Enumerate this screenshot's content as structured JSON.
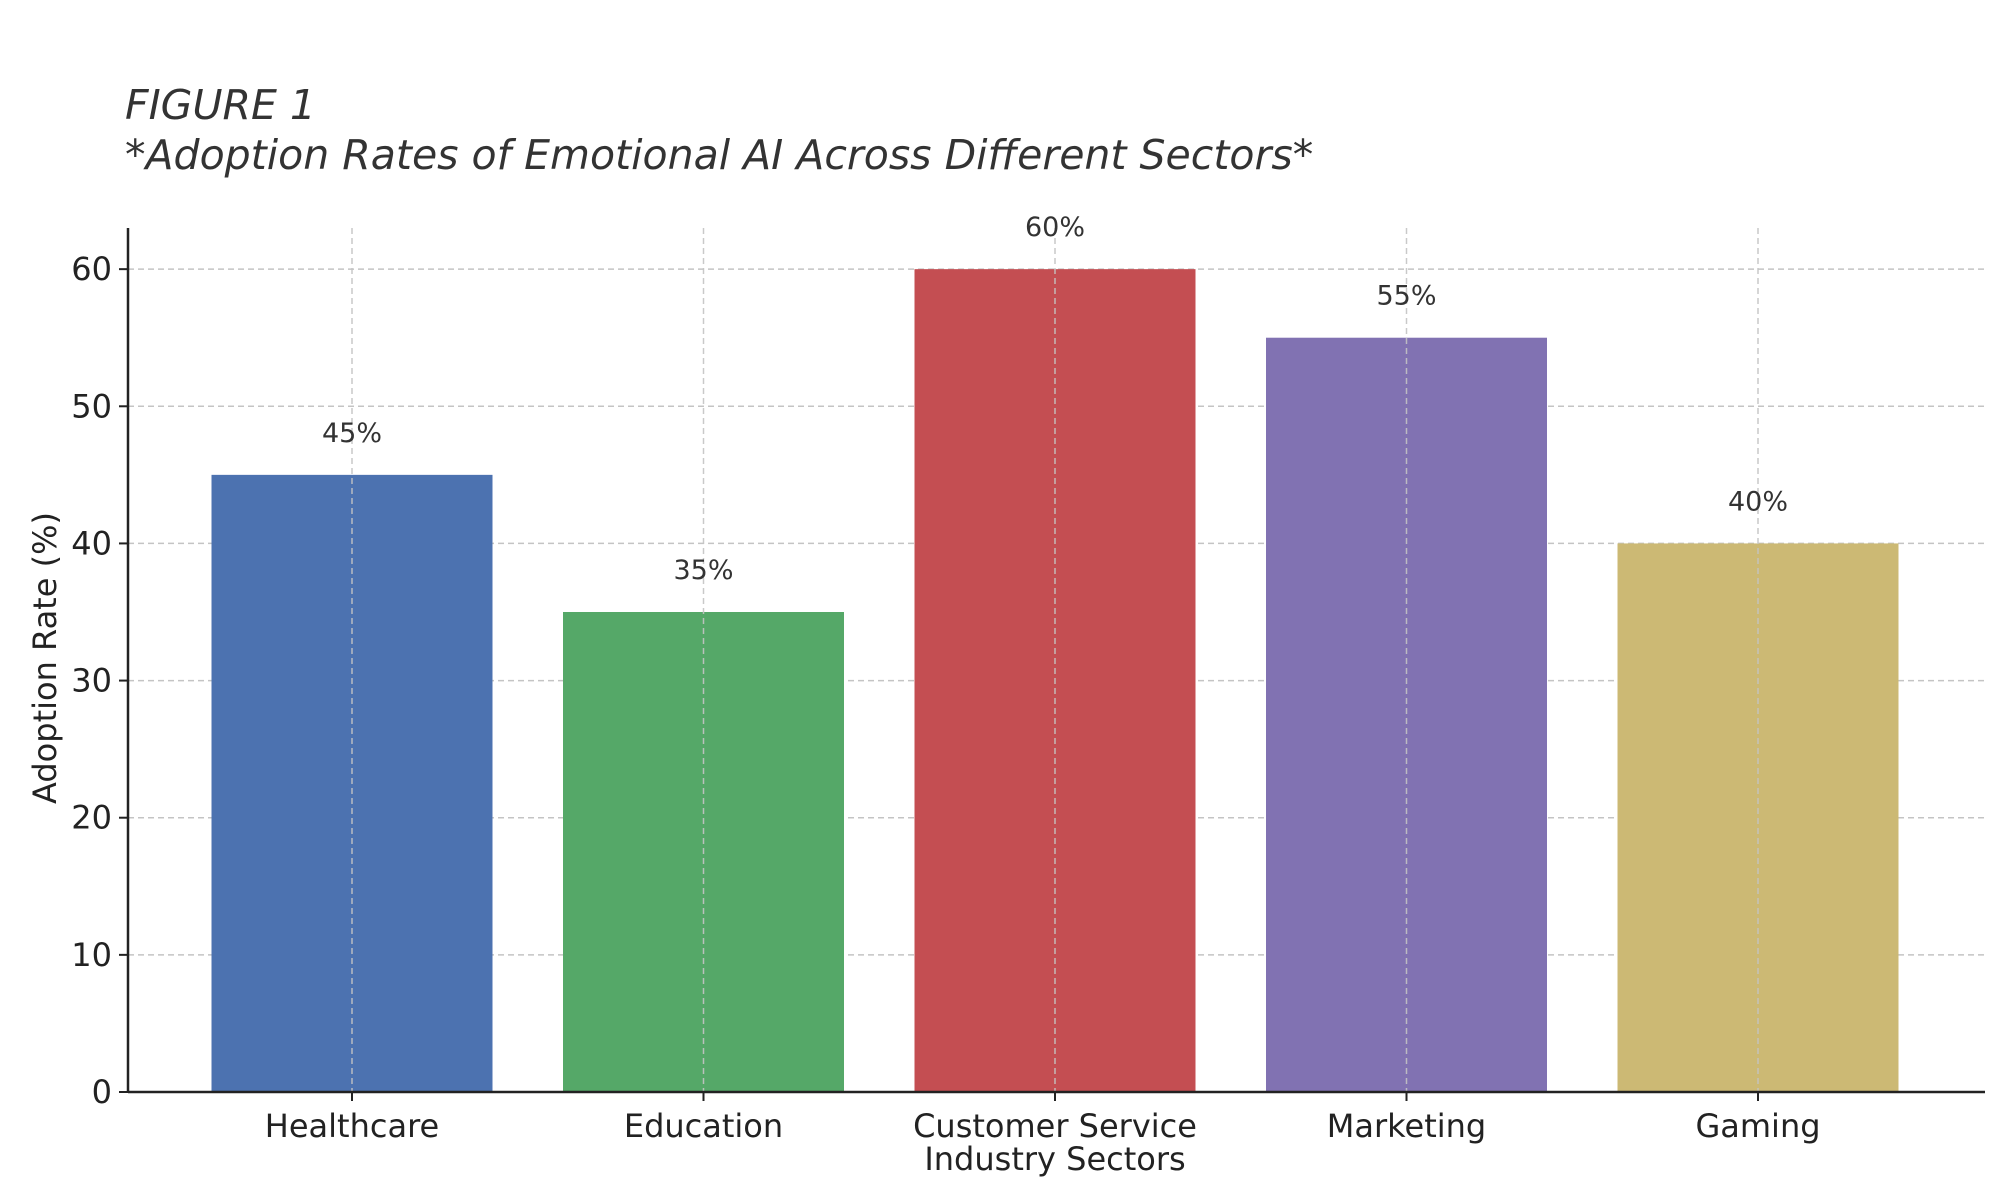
{
  "figure": {
    "label": "FIGURE 1",
    "title": "*Adoption Rates of Emotional AI Across Different Sectors*"
  },
  "chart_data": {
    "type": "bar",
    "title": "*Adoption Rates of Emotional AI Across Different Sectors*",
    "xlabel": "Industry Sectors",
    "ylabel": "Adoption Rate (%)",
    "categories": [
      "Healthcare",
      "Education",
      "Customer Service",
      "Marketing",
      "Gaming"
    ],
    "values": [
      45,
      35,
      60,
      55,
      40
    ],
    "value_labels": [
      "45%",
      "35%",
      "60%",
      "55%",
      "40%"
    ],
    "colors": [
      "#4c72b0",
      "#55a868",
      "#c44e52",
      "#8172b2",
      "#ccb974"
    ],
    "yticks": [
      0,
      10,
      20,
      30,
      40,
      50,
      60
    ],
    "ytick_labels": [
      "0",
      "10",
      "20",
      "30",
      "40",
      "50",
      "60"
    ],
    "ylim": [
      0,
      63
    ],
    "grid": true,
    "grid_style": "dashed"
  }
}
